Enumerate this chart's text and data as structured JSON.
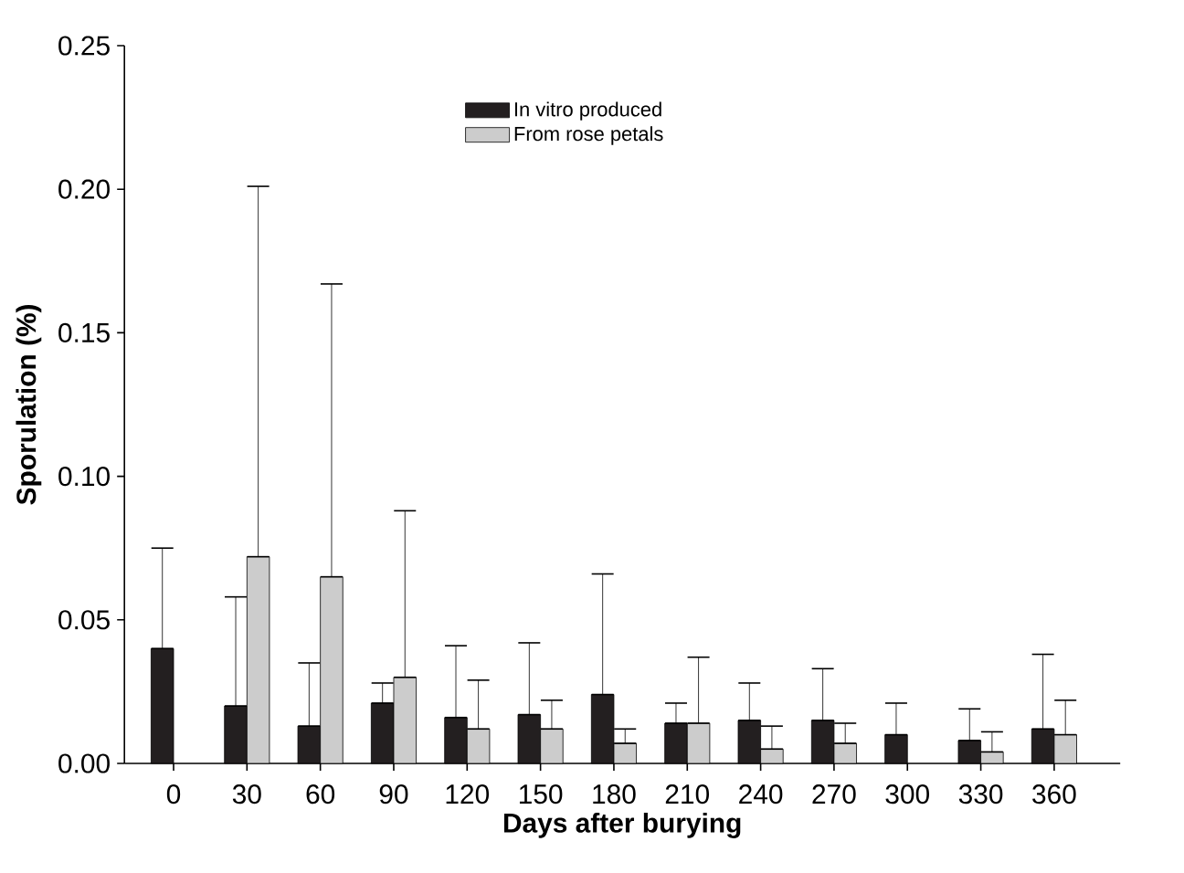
{
  "chart_data": {
    "type": "bar",
    "xlabel": "Days after burying",
    "ylabel": "Sporulation (%)",
    "categories": [
      "0",
      "30",
      "60",
      "90",
      "120",
      "150",
      "180",
      "210",
      "240",
      "270",
      "300",
      "330",
      "360"
    ],
    "series": [
      {
        "name": "In vitro produced",
        "color": "#231f20",
        "values": [
          0.04,
          0.02,
          0.013,
          0.021,
          0.016,
          0.017,
          0.024,
          0.014,
          0.015,
          0.015,
          0.01,
          0.008,
          0.012
        ],
        "errors": [
          [
            0.04,
            0.075
          ],
          [
            0.02,
            0.058
          ],
          [
            0.013,
            0.035
          ],
          [
            0.021,
            0.028
          ],
          [
            0.016,
            0.041
          ],
          [
            0.017,
            0.042
          ],
          [
            0.024,
            0.066
          ],
          [
            0.014,
            0.021
          ],
          [
            0.015,
            0.028
          ],
          [
            0.015,
            0.033
          ],
          [
            0.01,
            0.021
          ],
          [
            0.008,
            0.019
          ],
          [
            0.012,
            0.038
          ]
        ]
      },
      {
        "name": "From rose petals",
        "color": "#cccccc",
        "values": [
          null,
          0.072,
          0.065,
          0.03,
          0.012,
          0.012,
          0.007,
          0.014,
          0.005,
          0.007,
          null,
          0.004,
          0.01
        ],
        "errors": [
          null,
          [
            0.072,
            0.201
          ],
          [
            0.065,
            0.167
          ],
          [
            0.03,
            0.088
          ],
          [
            0.012,
            0.029
          ],
          [
            0.012,
            0.022
          ],
          [
            0.007,
            0.012
          ],
          [
            0.014,
            0.037
          ],
          [
            0.005,
            0.013
          ],
          [
            0.007,
            0.014
          ],
          null,
          [
            0.004,
            0.011
          ],
          [
            0.01,
            0.022
          ]
        ]
      }
    ],
    "ylim": [
      0,
      0.25
    ],
    "yticks": [
      {
        "value": 0,
        "label": "0.00"
      },
      {
        "value": 0.05,
        "label": "0.05"
      },
      {
        "value": 0.1,
        "label": "0.10"
      },
      {
        "value": 0.15,
        "label": "0.15"
      },
      {
        "value": 0.2,
        "label": "0.20"
      },
      {
        "value": 0.25,
        "label": "0.25"
      }
    ],
    "legend": "top",
    "grid": false
  }
}
